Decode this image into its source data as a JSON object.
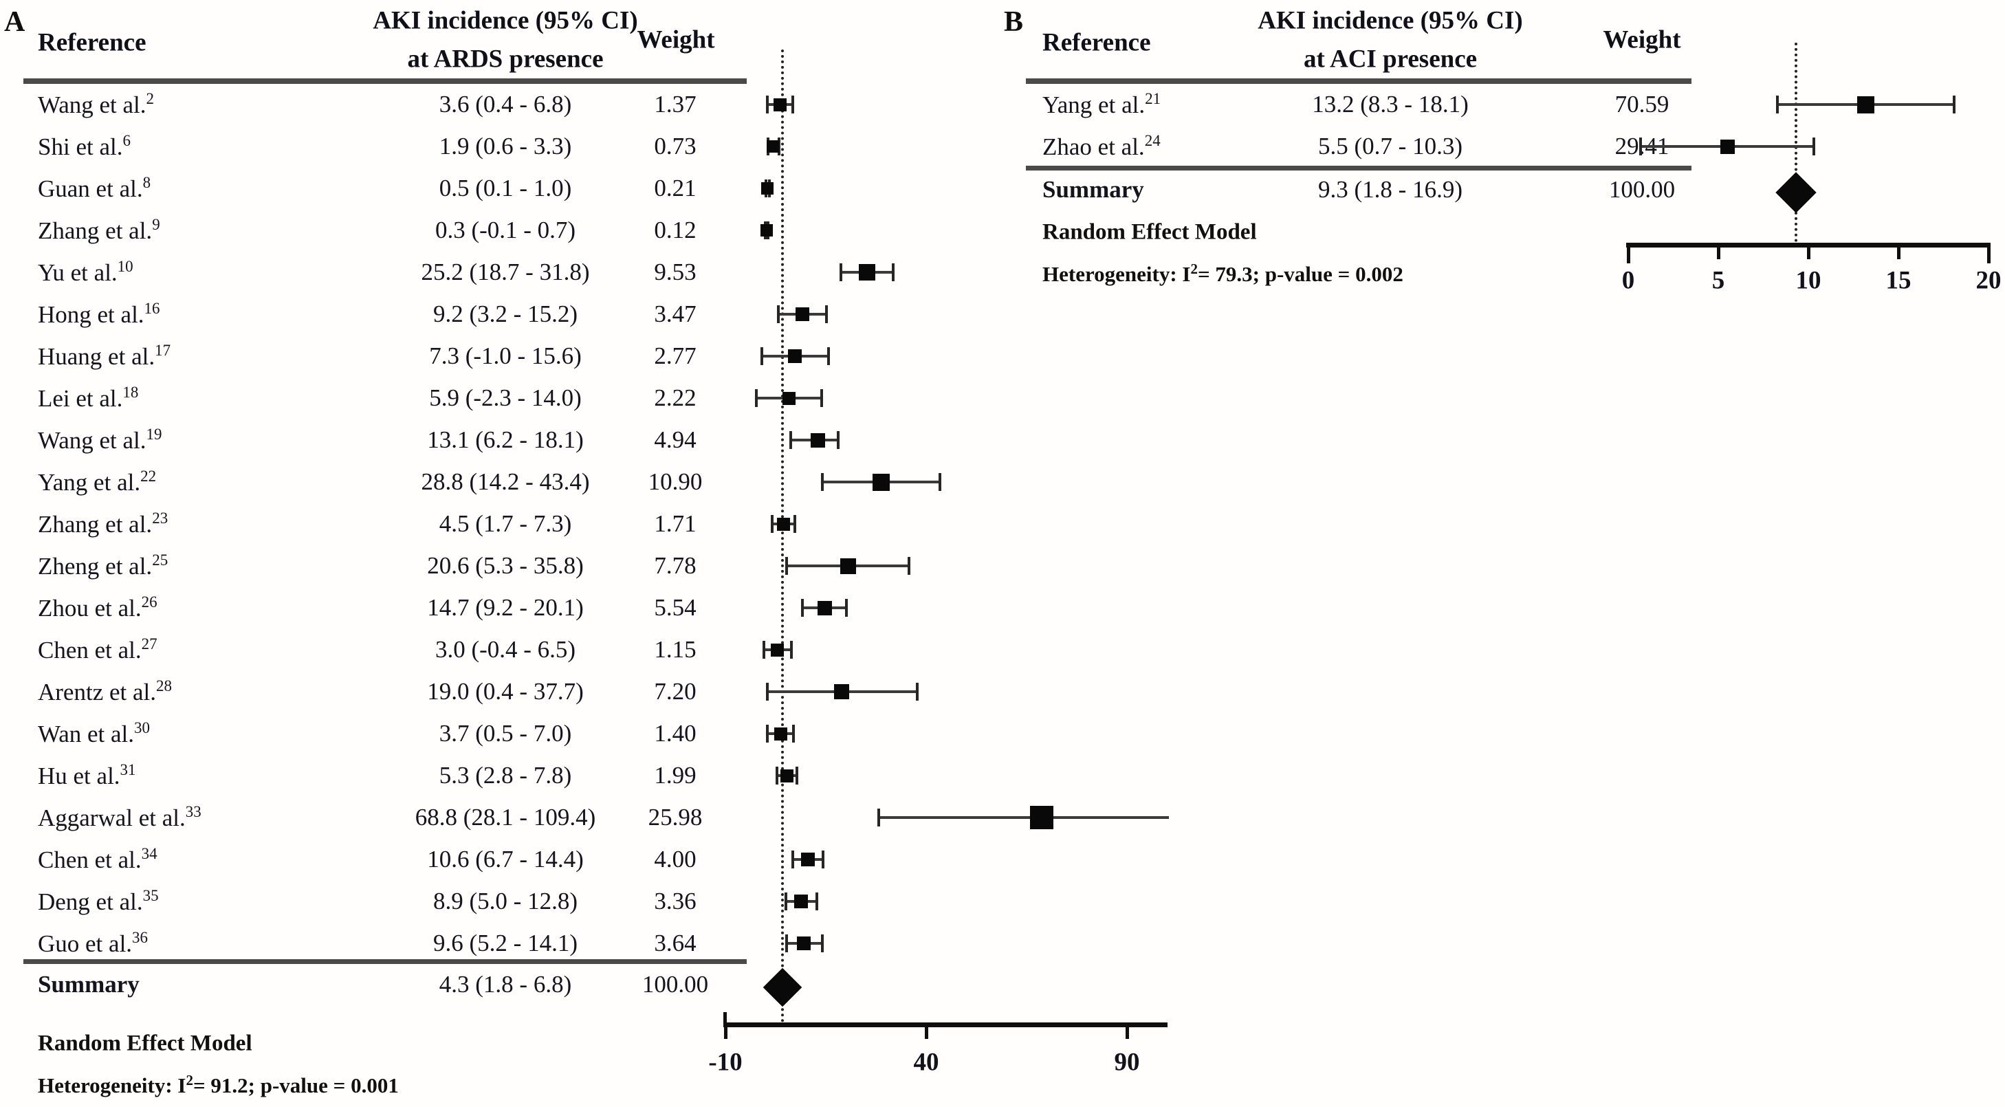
{
  "figure": {
    "description": "Forest plots of AKI incidence meta-analysis",
    "panel_a_label": "A",
    "panel_b_label": "B"
  },
  "chart_data": [
    {
      "type": "forest",
      "panel_label": "A",
      "header": {
        "reference": "Reference",
        "incidence_line1": "AKI incidence (95% CI)",
        "incidence_line2": "at ARDS presence",
        "weight": "Weight"
      },
      "x_axis": {
        "ticks": [
          -10,
          40,
          90
        ],
        "min": -10,
        "max": 100
      },
      "summary_line_value": 4.3,
      "studies": [
        {
          "reference": "Wang et al.",
          "citation": "2",
          "display": "3.6 (0.4 - 6.8)",
          "estimate": 3.6,
          "ci_low": 0.4,
          "ci_high": 6.8,
          "weight": 1.37,
          "weight_display": "1.37"
        },
        {
          "reference": "Shi et al.",
          "citation": "6",
          "display": "1.9 (0.6 - 3.3)",
          "estimate": 1.9,
          "ci_low": 0.6,
          "ci_high": 3.3,
          "weight": 0.73,
          "weight_display": "0.73"
        },
        {
          "reference": "Guan et al.",
          "citation": "8",
          "display": "0.5 (0.1 - 1.0)",
          "estimate": 0.5,
          "ci_low": 0.1,
          "ci_high": 1.0,
          "weight": 0.21,
          "weight_display": "0.21"
        },
        {
          "reference": "Zhang et al.",
          "citation": "9",
          "display": "0.3 (-0.1 - 0.7)",
          "estimate": 0.3,
          "ci_low": -0.1,
          "ci_high": 0.7,
          "weight": 0.12,
          "weight_display": "0.12"
        },
        {
          "reference": "Yu et al.",
          "citation": "10",
          "display": "25.2 (18.7 - 31.8)",
          "estimate": 25.2,
          "ci_low": 18.7,
          "ci_high": 31.8,
          "weight": 9.53,
          "weight_display": "9.53"
        },
        {
          "reference": "Hong et al.",
          "citation": "16",
          "display": "9.2 (3.2 - 15.2)",
          "estimate": 9.2,
          "ci_low": 3.2,
          "ci_high": 15.2,
          "weight": 3.47,
          "weight_display": "3.47"
        },
        {
          "reference": "Huang et al.",
          "citation": "17",
          "display": "7.3 (-1.0 - 15.6)",
          "estimate": 7.3,
          "ci_low": -1.0,
          "ci_high": 15.6,
          "weight": 2.77,
          "weight_display": "2.77"
        },
        {
          "reference": "Lei et al.",
          "citation": "18",
          "display": "5.9 (-2.3 - 14.0)",
          "estimate": 5.9,
          "ci_low": -2.3,
          "ci_high": 14.0,
          "weight": 2.22,
          "weight_display": "2.22"
        },
        {
          "reference": "Wang et al.",
          "citation": "19",
          "display": "13.1 (6.2 - 18.1)",
          "estimate": 13.1,
          "ci_low": 6.2,
          "ci_high": 18.1,
          "weight": 4.94,
          "weight_display": "4.94"
        },
        {
          "reference": "Yang et al.",
          "citation": "22",
          "display": "28.8 (14.2 - 43.4)",
          "estimate": 28.8,
          "ci_low": 14.2,
          "ci_high": 43.4,
          "weight": 10.9,
          "weight_display": "10.90"
        },
        {
          "reference": "Zhang et al.",
          "citation": "23",
          "display": "4.5 (1.7 - 7.3)",
          "estimate": 4.5,
          "ci_low": 1.7,
          "ci_high": 7.3,
          "weight": 1.71,
          "weight_display": "1.71"
        },
        {
          "reference": "Zheng et al.",
          "citation": "25",
          "display": "20.6 (5.3 - 35.8)",
          "estimate": 20.6,
          "ci_low": 5.3,
          "ci_high": 35.8,
          "weight": 7.78,
          "weight_display": "7.78"
        },
        {
          "reference": "Zhou et al.",
          "citation": "26",
          "display": "14.7 (9.2 - 20.1)",
          "estimate": 14.7,
          "ci_low": 9.2,
          "ci_high": 20.1,
          "weight": 5.54,
          "weight_display": "5.54"
        },
        {
          "reference": "Chen et al.",
          "citation": "27",
          "display": "3.0 (-0.4 - 6.5)",
          "estimate": 3.0,
          "ci_low": -0.4,
          "ci_high": 6.5,
          "weight": 1.15,
          "weight_display": "1.15"
        },
        {
          "reference": "Arentz et al.",
          "citation": "28",
          "display": "19.0 (0.4 - 37.7)",
          "estimate": 19.0,
          "ci_low": 0.4,
          "ci_high": 37.7,
          "weight": 7.2,
          "weight_display": "7.20"
        },
        {
          "reference": "Wan et al.",
          "citation": "30",
          "display": "3.7 (0.5 - 7.0)",
          "estimate": 3.7,
          "ci_low": 0.5,
          "ci_high": 7.0,
          "weight": 1.4,
          "weight_display": "1.40"
        },
        {
          "reference": "Hu et al.",
          "citation": "31",
          "display": "5.3 (2.8 - 7.8)",
          "estimate": 5.3,
          "ci_low": 2.8,
          "ci_high": 7.8,
          "weight": 1.99,
          "weight_display": "1.99"
        },
        {
          "reference": "Aggarwal et al.",
          "citation": "33",
          "display": "68.8 (28.1 - 109.4)",
          "estimate": 68.8,
          "ci_low": 28.1,
          "ci_high": 109.4,
          "weight": 25.98,
          "weight_display": "25.98"
        },
        {
          "reference": "Chen et al.",
          "citation": "34",
          "display": "10.6 (6.7 - 14.4)",
          "estimate": 10.6,
          "ci_low": 6.7,
          "ci_high": 14.4,
          "weight": 4.0,
          "weight_display": "4.00"
        },
        {
          "reference": "Deng et al.",
          "citation": "35",
          "display": "8.9 (5.0 - 12.8)",
          "estimate": 8.9,
          "ci_low": 5.0,
          "ci_high": 12.8,
          "weight": 3.36,
          "weight_display": "3.36"
        },
        {
          "reference": "Guo et al.",
          "citation": "36",
          "display": "9.6 (5.2 - 14.1)",
          "estimate": 9.6,
          "ci_low": 5.2,
          "ci_high": 14.1,
          "weight": 3.64,
          "weight_display": "3.64"
        }
      ],
      "summary": {
        "label": "Summary",
        "display": "4.3 (1.8 - 6.8)",
        "estimate": 4.3,
        "ci_low": 1.8,
        "ci_high": 6.8,
        "weight_display": "100.00"
      },
      "model_label": "Random Effect Model",
      "heterogeneity": {
        "prefix": "Heterogeneity: I",
        "sup": "2",
        "suffix": "= 91.2; p-value = 0.001",
        "i_squared": 91.2,
        "p_value": 0.001
      }
    },
    {
      "type": "forest",
      "panel_label": "B",
      "header": {
        "reference": "Reference",
        "incidence_line1": "AKI incidence (95% CI)",
        "incidence_line2": "at ACI presence",
        "weight": "Weight"
      },
      "x_axis": {
        "ticks": [
          0,
          5,
          10,
          15,
          20
        ],
        "min": 0,
        "max": 20
      },
      "summary_line_value": 9.3,
      "studies": [
        {
          "reference": "Yang et al.",
          "citation": "21",
          "display": "13.2 (8.3 - 18.1)",
          "estimate": 13.2,
          "ci_low": 8.3,
          "ci_high": 18.1,
          "weight": 70.59,
          "weight_display": "70.59"
        },
        {
          "reference": "Zhao et al.",
          "citation": "24",
          "display": "5.5 (0.7 - 10.3)",
          "estimate": 5.5,
          "ci_low": 0.7,
          "ci_high": 10.3,
          "weight": 29.41,
          "weight_display": "29.41"
        }
      ],
      "summary": {
        "label": "Summary",
        "display": "9.3 (1.8 - 16.9)",
        "estimate": 9.3,
        "ci_low": 1.8,
        "ci_high": 16.9,
        "weight_display": "100.00"
      },
      "model_label": "Random Effect Model",
      "heterogeneity": {
        "prefix": "Heterogeneity: I",
        "sup": "2",
        "suffix": "= 79.3; p-value = 0.002",
        "i_squared": 79.3,
        "p_value": 0.002
      }
    }
  ]
}
